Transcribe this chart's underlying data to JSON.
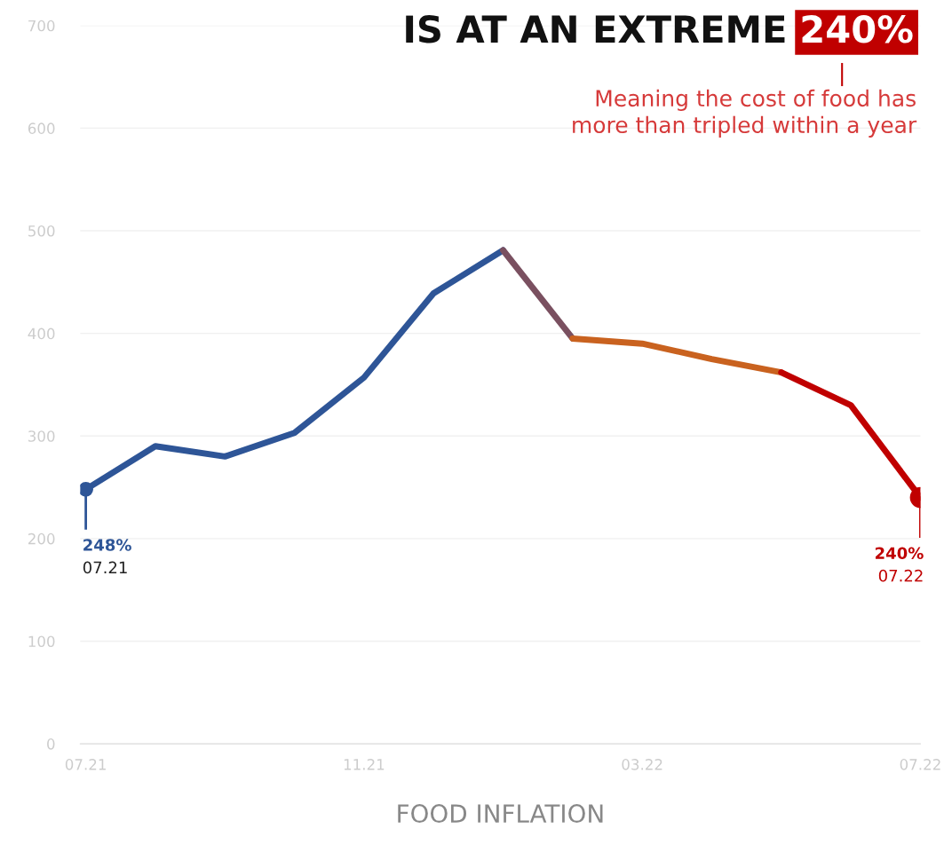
{
  "chart_data": {
    "type": "line",
    "title": "IS AT AN EXTREME 240%",
    "xlabel": "FOOD INFLATION",
    "categories": [
      "07.21",
      null,
      null,
      null,
      "11.21",
      null,
      null,
      null,
      "03.22",
      null,
      null,
      null,
      "07.22"
    ],
    "series": [
      {
        "color": "#2e5597",
        "values": [
          248,
          290,
          280,
          303,
          357,
          439,
          481,
          null,
          null,
          null,
          null,
          null,
          null
        ]
      },
      {
        "color": "#7a5060",
        "values": [
          null,
          null,
          null,
          null,
          null,
          null,
          481,
          395,
          null,
          null,
          null,
          null,
          null
        ]
      },
      {
        "color": "#c9621f",
        "values": [
          null,
          null,
          null,
          null,
          null,
          null,
          null,
          395,
          390,
          375,
          362,
          null,
          null
        ]
      },
      {
        "color": "#c00000",
        "values": [
          null,
          null,
          null,
          null,
          null,
          null,
          null,
          null,
          null,
          null,
          362,
          330,
          240
        ]
      }
    ],
    "ylim": [
      0,
      700
    ],
    "yticks": [
      0,
      100,
      200,
      300,
      400,
      500,
      600,
      700
    ],
    "grid": "y",
    "annotations": [
      {
        "text": "248%\n07.21",
        "x": "07.21",
        "y": 248
      },
      {
        "text": "240%\n07.22",
        "x": "07.22",
        "y": 240
      },
      "Meaning the cost of food has\nmore than tripled within a year"
    ]
  }
}
